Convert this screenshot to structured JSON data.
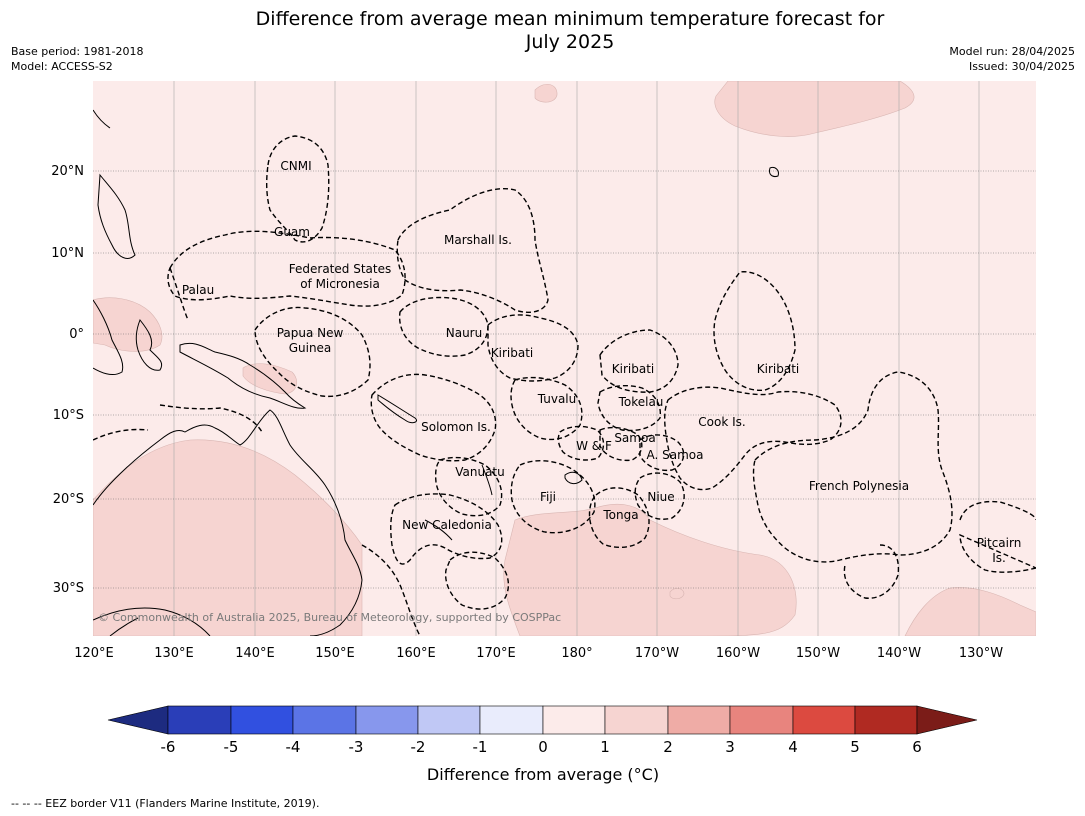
{
  "title_line1": "Difference from average mean minimum temperature forecast for",
  "title_line2": "July 2025",
  "meta_left": {
    "base_period": "Base period: 1981-2018",
    "model": "Model: ACCESS-S2"
  },
  "meta_right": {
    "model_run": "Model run: 28/04/2025",
    "issued": "Issued: 30/04/2025"
  },
  "credit": "© Commonwealth of Australia 2025, Bureau of Meteorology, supported by COSPPac",
  "footer": "-- -- -- EEZ border V11 (Flanders Marine Institute, 2019).",
  "map": {
    "lon_labels": [
      "120°E",
      "130°E",
      "140°E",
      "150°E",
      "160°E",
      "170°E",
      "180°",
      "170°W",
      "160°W",
      "150°W",
      "140°W",
      "130°W"
    ],
    "lat_labels": [
      "20°N",
      "10°N",
      "0°",
      "10°S",
      "20°S",
      "30°S"
    ],
    "regions": {
      "cnmi": "CNMI",
      "guam": "Guam",
      "marshall": "Marshall Is.",
      "fsm1": "Federated States",
      "fsm2": "of Micronesia",
      "palau": "Palau",
      "png1": "Papua New",
      "png2": "Guinea",
      "nauru": "Nauru",
      "kiribati_w": "Kiribati",
      "kiribati_c": "Kiribati",
      "kiribati_e": "Kiribati",
      "tuvalu": "Tuvalu",
      "tokelau": "Tokelau",
      "cook": "Cook Is.",
      "solomon": "Solomon Is.",
      "wf": "W & F",
      "samoa": "Samoa",
      "asamoa": "A. Samoa",
      "vanuatu": "Vanuatu",
      "fiji": "Fiji",
      "niue": "Niue",
      "tonga": "Tonga",
      "newcal": "New Caledonia",
      "frpoly": "French Polynesia",
      "pitcairn1": "Pitcairn",
      "pitcairn2": "Is."
    },
    "colors": {
      "background_anomaly_0_1": "#fcebea",
      "anomaly_1_2": "#f6d4d1",
      "land_outline": "#000000"
    }
  },
  "colorbar": {
    "title": "Difference from average (°C)",
    "ticks": [
      "-6",
      "-5",
      "-4",
      "-3",
      "-2",
      "-1",
      "0",
      "1",
      "2",
      "3",
      "4",
      "5",
      "6"
    ],
    "colors": [
      "#1d2b80",
      "#2a3eb8",
      "#3150e0",
      "#5b74e6",
      "#8797ed",
      "#c0c8f5",
      "#e9ecfc",
      "#fcebea",
      "#f6d4d1",
      "#efaca6",
      "#e8847e",
      "#dc4a40",
      "#b02a22",
      "#7b1c18"
    ]
  }
}
